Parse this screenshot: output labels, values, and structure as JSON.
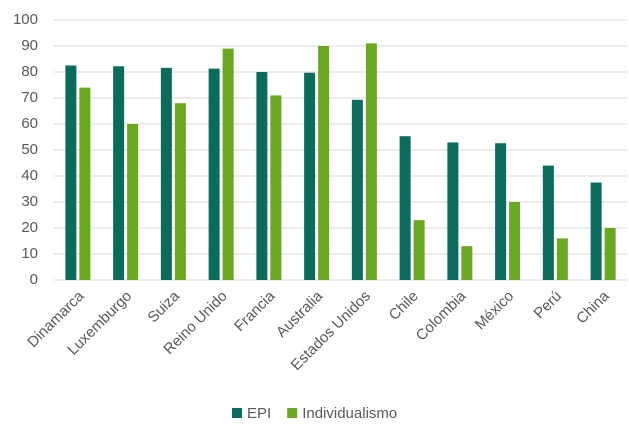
{
  "chart_data": {
    "type": "bar",
    "categories": [
      "Dinamarca",
      "Luxemburgo",
      "Suiza",
      "Reino Unido",
      "Francia",
      "Australia",
      "Estados Unidos",
      "Chile",
      "Colombia",
      "México",
      "Perú",
      "China"
    ],
    "series": [
      {
        "name": "EPI",
        "color": "#0d6b5c",
        "values": [
          82.5,
          82.2,
          81.6,
          81.3,
          80,
          79.7,
          69.3,
          55.3,
          52.9,
          52.6,
          44,
          37.5
        ]
      },
      {
        "name": "Individualismo",
        "color": "#6aa822",
        "values": [
          74,
          60,
          68,
          89,
          71,
          90,
          91,
          23,
          13,
          30,
          16,
          20
        ]
      }
    ],
    "ylim": [
      0,
      100
    ],
    "yticks": [
      0,
      10,
      20,
      30,
      40,
      50,
      60,
      70,
      80,
      90,
      100
    ],
    "grid": true,
    "legend": "bottom"
  }
}
